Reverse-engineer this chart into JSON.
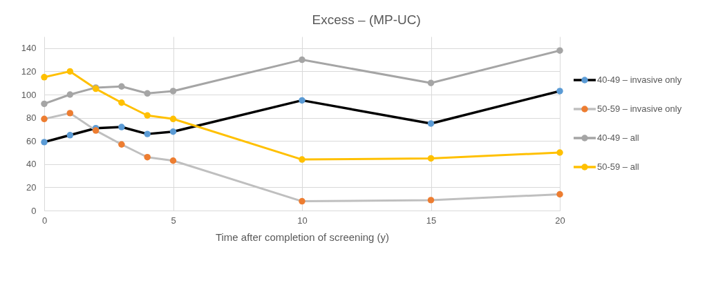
{
  "chart_data": {
    "type": "line",
    "title": "Excess – (MP-UC)",
    "xlabel": "Time after completion of screening (y)",
    "x": [
      0,
      1,
      2,
      3,
      4,
      5,
      10,
      15,
      20
    ],
    "series": [
      {
        "name": "40-49 – invasive only",
        "color": "#000000",
        "colors": [
          "#5b9bd5",
          "#5b9bd5",
          "#5b9bd5",
          "#5b9bd5",
          "#5b9bd5",
          "#5b9bd5",
          "#5b9bd5",
          "#5b9bd5",
          "#5b9bd5"
        ],
        "values": [
          59,
          65,
          71,
          72,
          66,
          68,
          95,
          75,
          103
        ]
      },
      {
        "name": "50-59 – invasive only",
        "color": "#bfbfbf",
        "colors": [
          "#ed7d31",
          "#ed7d31",
          "#ed7d31",
          "#ed7d31",
          "#ed7d31",
          "#ed7d31",
          "#ed7d31",
          "#ed7d31",
          "#ed7d31"
        ],
        "values": [
          79,
          84,
          69,
          57,
          46,
          43,
          8,
          9,
          14
        ]
      },
      {
        "name": "40-49 – all",
        "color": "#a5a5a5",
        "colors": [
          "#a5a5a5",
          "#a5a5a5",
          "#a5a5a5",
          "#a5a5a5",
          "#a5a5a5",
          "#a5a5a5",
          "#a5a5a5",
          "#a5a5a5",
          "#a5a5a5"
        ],
        "values": [
          92,
          100,
          106,
          107,
          101,
          103,
          130,
          110,
          138
        ]
      },
      {
        "name": "50-59 – all",
        "color": "#ffc000",
        "colors": [
          "#ffc000",
          "#ffc000",
          "#ffc000",
          "#ffc000",
          "#ffc000",
          "#ffc000",
          "#ffc000",
          "#ffc000",
          "#ffc000"
        ],
        "values": [
          115,
          120,
          105,
          93,
          82,
          79,
          44,
          45,
          50
        ]
      }
    ],
    "xlim": [
      0,
      20
    ],
    "xticks": [
      0,
      5,
      10,
      15,
      20
    ],
    "ylim": [
      0,
      150
    ],
    "yticks": [
      0,
      20,
      40,
      60,
      80,
      100,
      120,
      140
    ],
    "grid": true,
    "legend": "right",
    "marker": "circle",
    "line_style": "solid"
  }
}
